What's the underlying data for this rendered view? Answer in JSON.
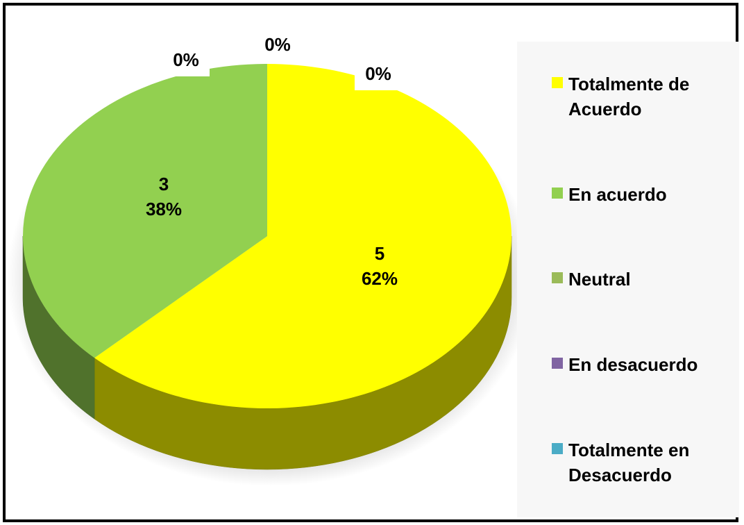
{
  "chart_data": {
    "type": "pie3d",
    "categories": [
      "Totalmente de Acuerdo",
      "En acuerdo",
      "Neutral",
      "En desacuerdo",
      "Totalmente en Desacuerdo"
    ],
    "values": [
      5,
      3,
      0,
      0,
      0
    ],
    "percentages": [
      62,
      38,
      0,
      0,
      0
    ],
    "percentage_labels": [
      "62%",
      "38%",
      "0%",
      "0%",
      "0%"
    ],
    "colors": [
      "#ffff00",
      "#92d050",
      "#9bbb59",
      "#8064a2",
      "#4bacc6"
    ],
    "legend": "right"
  }
}
